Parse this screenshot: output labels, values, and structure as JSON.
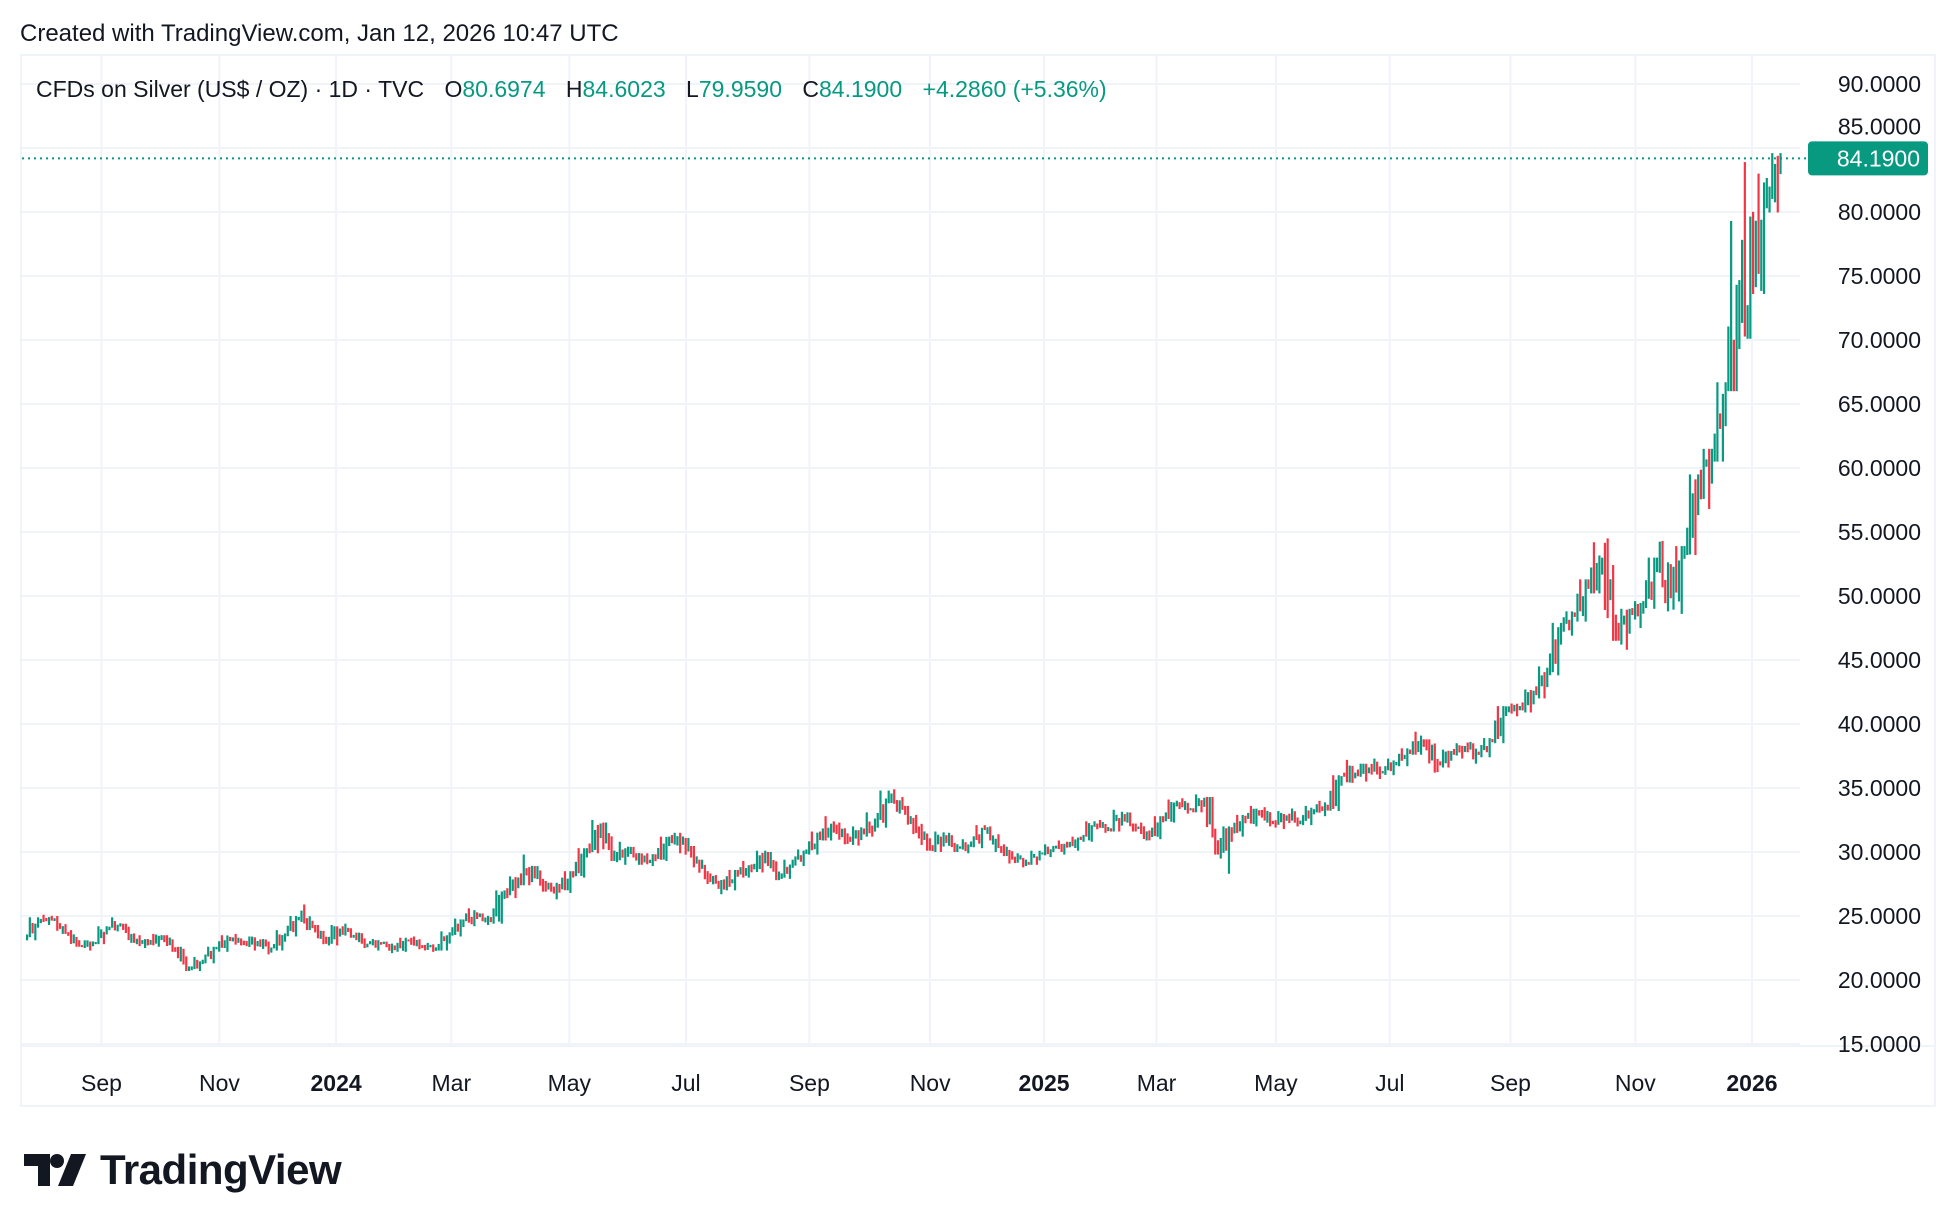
{
  "header": {
    "created_text": "Created with TradingView.com, Jan 12, 2026 10:47 UTC"
  },
  "legend": {
    "symbol": "CFDs on Silver (US$ / OZ) · 1D · TVC",
    "open_label": "O",
    "open": "80.6974",
    "high_label": "H",
    "high": "84.6023",
    "low_label": "L",
    "low": "79.9590",
    "close_label": "C",
    "close": "84.1900",
    "change": "+4.2860 (+5.36%)"
  },
  "colors": {
    "up": "#089981",
    "down": "#f23645",
    "grid": "#f0f3fa",
    "text": "#131722",
    "price_badge": "#089981"
  },
  "logo": {
    "text": "TradingView",
    "icon": "tradingview-logo-icon"
  },
  "chart_data": {
    "type": "candlestick",
    "title": "CFDs on Silver (US$ / OZ) · 1D · TVC",
    "xlabel": "",
    "ylabel": "",
    "ylim": [
      15,
      90
    ],
    "y_ticks": [
      "15.0000",
      "20.0000",
      "25.0000",
      "30.0000",
      "35.0000",
      "40.0000",
      "45.0000",
      "50.0000",
      "55.0000",
      "60.0000",
      "65.0000",
      "70.0000",
      "75.0000",
      "80.0000",
      "85.0000",
      "90.0000"
    ],
    "x_ticks": [
      {
        "label": "Sep",
        "bold": false,
        "week": 5.5
      },
      {
        "label": "Nov",
        "bold": false,
        "week": 14.1
      },
      {
        "label": "2024",
        "bold": true,
        "week": 22.6
      },
      {
        "label": "Mar",
        "bold": false,
        "week": 31.0
      },
      {
        "label": "May",
        "bold": false,
        "week": 39.6
      },
      {
        "label": "Jul",
        "bold": false,
        "week": 48.1
      },
      {
        "label": "Sep",
        "bold": false,
        "week": 57.1
      },
      {
        "label": "Nov",
        "bold": false,
        "week": 65.9
      },
      {
        "label": "2025",
        "bold": true,
        "week": 74.2
      },
      {
        "label": "Mar",
        "bold": false,
        "week": 82.4
      },
      {
        "label": "May",
        "bold": false,
        "week": 91.1
      },
      {
        "label": "Jul",
        "bold": false,
        "week": 99.4
      },
      {
        "label": "Sep",
        "bold": false,
        "week": 108.2
      },
      {
        "label": "Nov",
        "bold": false,
        "week": 117.3
      },
      {
        "label": "2026",
        "bold": true,
        "week": 125.8
      }
    ],
    "grid": true,
    "last_price": 84.19,
    "last_price_label": "84.1900",
    "bar_interval": "weekly (approximated from daily)",
    "ohlc": [
      [
        23.3,
        24.9,
        23.1,
        24.6
      ],
      [
        24.6,
        25.1,
        24.3,
        24.8
      ],
      [
        24.8,
        25.0,
        23.6,
        23.7
      ],
      [
        23.7,
        23.9,
        22.6,
        22.7
      ],
      [
        22.7,
        23.1,
        22.3,
        22.9
      ],
      [
        22.9,
        24.2,
        22.8,
        24.1
      ],
      [
        24.1,
        24.9,
        23.8,
        24.3
      ],
      [
        24.3,
        24.4,
        22.9,
        23.0
      ],
      [
        23.0,
        23.5,
        22.5,
        22.9
      ],
      [
        22.9,
        23.6,
        22.6,
        23.4
      ],
      [
        23.4,
        23.5,
        22.2,
        22.4
      ],
      [
        22.4,
        22.6,
        20.7,
        20.9
      ],
      [
        20.9,
        21.8,
        20.7,
        21.5
      ],
      [
        21.5,
        22.6,
        21.3,
        22.5
      ],
      [
        22.5,
        23.5,
        22.2,
        23.2
      ],
      [
        23.2,
        23.6,
        22.7,
        22.9
      ],
      [
        22.9,
        23.4,
        22.3,
        23.0
      ],
      [
        23.0,
        23.2,
        22.0,
        22.5
      ],
      [
        22.5,
        23.9,
        22.3,
        23.6
      ],
      [
        23.6,
        25.0,
        23.4,
        24.9
      ],
      [
        24.9,
        25.9,
        23.9,
        24.1
      ],
      [
        24.1,
        24.3,
        22.8,
        23.0
      ],
      [
        23.0,
        24.3,
        22.7,
        24.0
      ],
      [
        24.0,
        24.4,
        23.3,
        23.5
      ],
      [
        23.5,
        23.7,
        22.5,
        22.8
      ],
      [
        22.8,
        23.2,
        22.3,
        22.9
      ],
      [
        22.9,
        23.0,
        22.1,
        22.4
      ],
      [
        22.4,
        23.3,
        22.2,
        23.1
      ],
      [
        23.1,
        23.4,
        22.4,
        22.6
      ],
      [
        22.6,
        22.9,
        22.2,
        22.5
      ],
      [
        22.5,
        23.8,
        22.3,
        23.6
      ],
      [
        23.6,
        24.8,
        23.4,
        24.6
      ],
      [
        24.6,
        25.6,
        24.2,
        25.0
      ],
      [
        25.0,
        25.2,
        24.3,
        24.6
      ],
      [
        24.6,
        27.0,
        24.4,
        26.8
      ],
      [
        26.8,
        28.1,
        26.4,
        27.8
      ],
      [
        27.8,
        29.8,
        27.4,
        28.6
      ],
      [
        28.6,
        28.9,
        26.9,
        27.2
      ],
      [
        27.2,
        27.6,
        26.3,
        27.1
      ],
      [
        27.1,
        28.5,
        26.8,
        28.3
      ],
      [
        28.3,
        30.3,
        28.0,
        30.1
      ],
      [
        30.1,
        32.5,
        29.9,
        31.8
      ],
      [
        31.8,
        32.3,
        29.3,
        29.6
      ],
      [
        29.6,
        30.8,
        29.0,
        30.1
      ],
      [
        30.1,
        30.4,
        29.0,
        29.3
      ],
      [
        29.3,
        29.9,
        28.9,
        29.5
      ],
      [
        29.5,
        31.2,
        29.3,
        31.0
      ],
      [
        31.0,
        31.5,
        29.9,
        30.9
      ],
      [
        30.9,
        31.1,
        28.8,
        29.2
      ],
      [
        29.2,
        29.4,
        27.5,
        27.8
      ],
      [
        27.8,
        28.2,
        26.7,
        27.3
      ],
      [
        27.3,
        28.6,
        27.0,
        28.4
      ],
      [
        28.4,
        29.3,
        28.0,
        28.7
      ],
      [
        28.7,
        30.1,
        28.4,
        29.8
      ],
      [
        29.8,
        30.0,
        27.8,
        28.0
      ],
      [
        28.0,
        29.4,
        27.9,
        29.2
      ],
      [
        29.2,
        30.2,
        28.9,
        30.0
      ],
      [
        30.0,
        31.6,
        29.8,
        31.2
      ],
      [
        31.2,
        32.8,
        30.9,
        31.9
      ],
      [
        31.9,
        32.3,
        30.6,
        31.0
      ],
      [
        31.0,
        32.0,
        30.5,
        31.6
      ],
      [
        31.6,
        33.1,
        31.2,
        32.2
      ],
      [
        32.2,
        34.8,
        31.9,
        34.2
      ],
      [
        34.2,
        34.9,
        33.0,
        33.4
      ],
      [
        33.4,
        33.6,
        31.4,
        31.8
      ],
      [
        31.8,
        32.2,
        30.1,
        30.4
      ],
      [
        30.4,
        31.6,
        30.0,
        31.2
      ],
      [
        31.2,
        31.5,
        30.0,
        30.3
      ],
      [
        30.3,
        31.0,
        29.9,
        30.6
      ],
      [
        30.6,
        32.1,
        30.3,
        31.8
      ],
      [
        31.8,
        32.0,
        30.0,
        30.4
      ],
      [
        30.4,
        30.6,
        29.1,
        29.6
      ],
      [
        29.6,
        29.9,
        28.8,
        29.2
      ],
      [
        29.2,
        30.1,
        29.0,
        29.9
      ],
      [
        29.9,
        30.6,
        29.6,
        30.3
      ],
      [
        30.3,
        30.9,
        29.8,
        30.5
      ],
      [
        30.5,
        31.2,
        30.1,
        31.0
      ],
      [
        31.0,
        32.4,
        30.8,
        32.2
      ],
      [
        32.2,
        32.5,
        31.5,
        31.8
      ],
      [
        31.8,
        33.3,
        31.6,
        32.9
      ],
      [
        32.9,
        33.1,
        31.6,
        31.9
      ],
      [
        31.9,
        32.3,
        30.9,
        31.2
      ],
      [
        31.2,
        32.8,
        31.0,
        32.6
      ],
      [
        32.6,
        34.1,
        32.3,
        33.8
      ],
      [
        33.8,
        34.2,
        33.0,
        33.3
      ],
      [
        33.3,
        34.5,
        33.1,
        34.1
      ],
      [
        34.1,
        34.3,
        29.8,
        30.1
      ],
      [
        30.1,
        32.0,
        28.3,
        31.6
      ],
      [
        31.6,
        32.9,
        31.2,
        32.6
      ],
      [
        32.6,
        33.6,
        32.0,
        33.1
      ],
      [
        33.1,
        33.5,
        32.0,
        32.3
      ],
      [
        32.3,
        33.2,
        31.8,
        32.8
      ],
      [
        32.8,
        33.4,
        32.0,
        32.4
      ],
      [
        32.4,
        33.6,
        32.1,
        33.3
      ],
      [
        33.3,
        34.0,
        32.8,
        33.5
      ],
      [
        33.5,
        36.0,
        33.2,
        35.9
      ],
      [
        35.9,
        37.2,
        35.4,
        36.2
      ],
      [
        36.2,
        36.9,
        35.5,
        36.6
      ],
      [
        36.6,
        37.3,
        35.7,
        36.3
      ],
      [
        36.3,
        37.3,
        36.0,
        37.0
      ],
      [
        37.0,
        38.1,
        36.7,
        37.9
      ],
      [
        37.9,
        39.4,
        37.6,
        38.6
      ],
      [
        38.6,
        38.8,
        36.2,
        36.8
      ],
      [
        36.8,
        38.0,
        36.6,
        37.8
      ],
      [
        37.8,
        38.5,
        37.3,
        38.2
      ],
      [
        38.2,
        38.6,
        36.9,
        37.6
      ],
      [
        37.6,
        38.9,
        37.4,
        38.7
      ],
      [
        38.7,
        41.4,
        38.5,
        41.1
      ],
      [
        41.1,
        41.6,
        40.6,
        41.3
      ],
      [
        41.3,
        42.7,
        40.9,
        42.4
      ],
      [
        42.4,
        44.5,
        42.0,
        44.1
      ],
      [
        44.1,
        47.9,
        43.8,
        47.5
      ],
      [
        47.5,
        48.8,
        46.9,
        48.4
      ],
      [
        48.4,
        51.3,
        48.0,
        50.8
      ],
      [
        50.8,
        54.2,
        50.2,
        52.4
      ],
      [
        52.4,
        54.5,
        46.5,
        47.2
      ],
      [
        47.2,
        49.0,
        45.8,
        48.6
      ],
      [
        48.6,
        49.6,
        47.5,
        49.3
      ],
      [
        49.3,
        53.0,
        49.0,
        52.6
      ],
      [
        52.6,
        54.3,
        48.8,
        50.0
      ],
      [
        50.0,
        53.9,
        48.6,
        53.5
      ],
      [
        53.5,
        59.5,
        53.2,
        58.9
      ],
      [
        58.9,
        61.5,
        56.8,
        61.0
      ],
      [
        61.0,
        66.7,
        60.5,
        66.3
      ],
      [
        66.3,
        79.3,
        66.0,
        72.0
      ],
      [
        72.0,
        83.9,
        70.1,
        75.4
      ],
      [
        75.4,
        83.0,
        73.6,
        80.7
      ],
      [
        80.7,
        84.6,
        79.96,
        84.19
      ]
    ]
  }
}
